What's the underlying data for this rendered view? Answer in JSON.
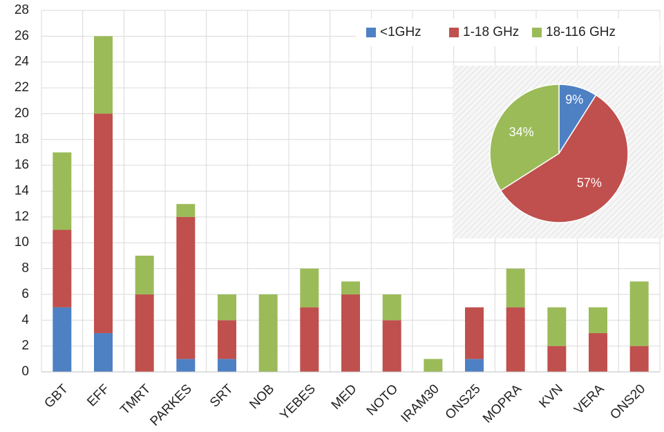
{
  "chart_data": [
    {
      "type": "stacked_bar",
      "categories": [
        "GBT",
        "EFF",
        "TMRT",
        "PARKES",
        "SRT",
        "NOB",
        "YEBES",
        "MED",
        "NOTO",
        "IRAM30",
        "ONS25",
        "MOPRA",
        "KVN",
        "VERA",
        "ONS20"
      ],
      "series": [
        {
          "name": "<1GHz",
          "color": "#4e80c4",
          "values": [
            5,
            3,
            0,
            1,
            1,
            0,
            0,
            0,
            0,
            0,
            1,
            0,
            0,
            0,
            0
          ]
        },
        {
          "name": "1-18 GHz",
          "color": "#c0504d",
          "values": [
            6,
            17,
            6,
            11,
            3,
            0,
            5,
            6,
            4,
            0,
            4,
            5,
            2,
            3,
            2
          ]
        },
        {
          "name": "18-116 GHz",
          "color": "#9bbb59",
          "values": [
            6,
            6,
            3,
            1,
            2,
            6,
            3,
            1,
            2,
            1,
            0,
            3,
            3,
            2,
            5
          ]
        }
      ],
      "ylim": [
        0,
        28
      ],
      "yticks": [
        0,
        2,
        4,
        6,
        8,
        10,
        12,
        14,
        16,
        18,
        20,
        22,
        24,
        26,
        28
      ],
      "grid": true,
      "legend": "upper right"
    },
    {
      "type": "pie",
      "values": [
        9,
        57,
        34
      ],
      "value_labels": [
        "9%",
        "57%",
        "34%"
      ],
      "colors": [
        "#4e80c4",
        "#c0504d",
        "#9bbb59"
      ]
    }
  ]
}
